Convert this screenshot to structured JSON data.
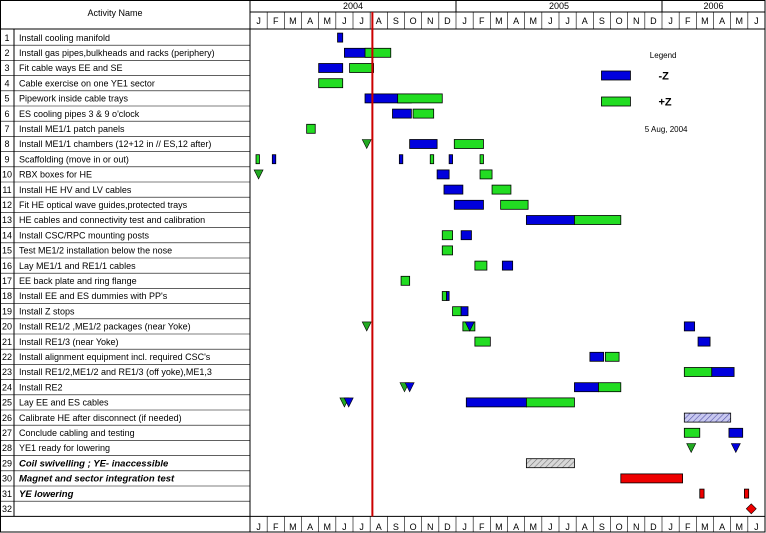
{
  "chart_data": {
    "type": "gantt",
    "header": {
      "activity_column": "Activity Name"
    },
    "years": [
      "2004",
      "2005",
      "2006"
    ],
    "months": [
      "J",
      "F",
      "M",
      "A",
      "M",
      "J",
      "J",
      "A",
      "S",
      "O",
      "N",
      "D",
      "J",
      "F",
      "M",
      "A",
      "M",
      "J",
      "J",
      "A",
      "S",
      "O",
      "N",
      "D",
      "J",
      "F",
      "M",
      "A",
      "M",
      "J"
    ],
    "time_axis": {
      "start": "2004-01",
      "end": "2006-06",
      "unit": "month"
    },
    "today_line": "2004-08-05",
    "legend": {
      "title": "Legend",
      "items": [
        {
          "label": "-Z",
          "color": "#0000dd"
        },
        {
          "label": "+Z",
          "color": "#22dd22"
        }
      ],
      "date": "5 Aug, 2004"
    },
    "colors": {
      "minus_z": "#0000dd",
      "plus_z": "#22dd22",
      "milestone": "#22aa22",
      "red": "#ee0000",
      "hatched": "#9999cc",
      "grey": "#bbbbbb",
      "today": "#cc0000"
    },
    "activities": [
      {
        "id": "1",
        "name": "Install cooling manifold",
        "bold": false,
        "bars": [
          {
            "s": 5.1,
            "e": 5.4,
            "c": "blue"
          }
        ]
      },
      {
        "id": "2",
        "name": "Install gas pipes,bulkheads and racks (periphery)",
        "bold": false,
        "bars": [
          {
            "s": 5.5,
            "e": 7.2,
            "c": "blue"
          },
          {
            "s": 6.7,
            "e": 8.2,
            "c": "green"
          }
        ]
      },
      {
        "id": "3",
        "name": "Fit cable ways  EE and SE",
        "bold": false,
        "bars": [
          {
            "s": 4.0,
            "e": 5.4,
            "c": "blue"
          },
          {
            "s": 5.8,
            "e": 7.2,
            "c": "green"
          }
        ]
      },
      {
        "id": "4",
        "name": "Cable exercise on one YE1 sector",
        "bold": false,
        "bars": [
          {
            "s": 4.0,
            "e": 5.4,
            "c": "green"
          }
        ]
      },
      {
        "id": "5",
        "name": "Pipework inside cable trays",
        "bold": false,
        "bars": [
          {
            "s": 6.7,
            "e": 9.4,
            "c": "blue"
          },
          {
            "s": 8.6,
            "e": 11.2,
            "c": "green"
          }
        ]
      },
      {
        "id": "6",
        "name": "ES cooling pipes 3  & 9 o'clock",
        "bold": false,
        "bars": [
          {
            "s": 8.3,
            "e": 9.4,
            "c": "blue"
          },
          {
            "s": 9.5,
            "e": 10.7,
            "c": "green"
          }
        ]
      },
      {
        "id": "7",
        "name": "Install ME1/1 patch panels",
        "bold": false,
        "bars": [
          {
            "s": 3.3,
            "e": 3.8,
            "c": "green"
          }
        ]
      },
      {
        "id": "8",
        "name": "Install ME1/1 chambers (12+12 in // ES,12 after)",
        "bold": false,
        "bars": [
          {
            "s": 9.3,
            "e": 10.9,
            "c": "blue"
          },
          {
            "s": 11.9,
            "e": 13.6,
            "c": "green"
          }
        ],
        "milestones": [
          {
            "t": 6.8,
            "c": "green"
          }
        ]
      },
      {
        "id": "9",
        "name": "Scaffolding (move in or out)",
        "bold": false,
        "bars": [
          {
            "s": 0.35,
            "e": 0.55,
            "c": "green"
          },
          {
            "s": 1.3,
            "e": 1.5,
            "c": "blue"
          },
          {
            "s": 8.7,
            "e": 8.9,
            "c": "blue"
          },
          {
            "s": 10.5,
            "e": 10.7,
            "c": "green"
          },
          {
            "s": 11.6,
            "e": 11.8,
            "c": "blue"
          },
          {
            "s": 13.4,
            "e": 13.6,
            "c": "green"
          }
        ]
      },
      {
        "id": "10",
        "name": "RBX boxes for HE",
        "bold": false,
        "bars": [
          {
            "s": 10.9,
            "e": 11.6,
            "c": "blue"
          },
          {
            "s": 13.4,
            "e": 14.1,
            "c": "green"
          }
        ],
        "milestones": [
          {
            "t": 0.5,
            "c": "green"
          }
        ]
      },
      {
        "id": "11",
        "name": "Install HE HV and LV cables",
        "bold": false,
        "bars": [
          {
            "s": 11.3,
            "e": 12.4,
            "c": "blue"
          },
          {
            "s": 14.1,
            "e": 15.2,
            "c": "green"
          }
        ]
      },
      {
        "id": "12",
        "name": "Fit HE optical wave guides,protected trays",
        "bold": false,
        "bars": [
          {
            "s": 11.9,
            "e": 13.6,
            "c": "blue"
          },
          {
            "s": 14.6,
            "e": 16.2,
            "c": "green"
          }
        ]
      },
      {
        "id": "13",
        "name": "HE cables and connectivity test and calibration",
        "bold": false,
        "bars": [
          {
            "s": 16.1,
            "e": 18.9,
            "c": "blue"
          },
          {
            "s": 18.9,
            "e": 21.6,
            "c": "green"
          }
        ]
      },
      {
        "id": "14",
        "name": "Install  CSC/RPC mounting posts",
        "bold": false,
        "bars": [
          {
            "s": 11.2,
            "e": 11.8,
            "c": "green"
          },
          {
            "s": 12.3,
            "e": 12.9,
            "c": "blue"
          }
        ]
      },
      {
        "id": "15",
        "name": "Test ME1/2 installation below the nose",
        "bold": false,
        "bars": [
          {
            "s": 11.2,
            "e": 11.8,
            "c": "green"
          }
        ]
      },
      {
        "id": "16",
        "name": "Lay ME1/1 and RE1/1 cables",
        "bold": false,
        "bars": [
          {
            "s": 13.1,
            "e": 13.8,
            "c": "green"
          },
          {
            "s": 14.7,
            "e": 15.3,
            "c": "blue"
          }
        ]
      },
      {
        "id": "17",
        "name": "EE back plate and ring flange",
        "bold": false,
        "bars": [
          {
            "s": 8.8,
            "e": 9.3,
            "c": "green"
          }
        ]
      },
      {
        "id": "18",
        "name": "Install EE and ES dummies with PP's",
        "bold": false,
        "bars": [
          {
            "s": 11.2,
            "e": 11.45,
            "c": "green"
          },
          {
            "s": 11.45,
            "e": 11.6,
            "c": "blue"
          }
        ]
      },
      {
        "id": "19",
        "name": "Install  Z stops",
        "bold": false,
        "bars": [
          {
            "s": 11.8,
            "e": 12.3,
            "c": "green"
          },
          {
            "s": 12.3,
            "e": 12.7,
            "c": "blue"
          }
        ]
      },
      {
        "id": "20",
        "name": "Install RE1/2 ,ME1/2 packages (near Yoke)",
        "bold": false,
        "bars": [
          {
            "s": 12.4,
            "e": 13.1,
            "c": "green"
          },
          {
            "s": 25.3,
            "e": 25.9,
            "c": "blue"
          }
        ],
        "milestones": [
          {
            "t": 6.8,
            "c": "green"
          },
          {
            "t": 12.8,
            "c": "blue"
          }
        ]
      },
      {
        "id": "21",
        "name": "Install RE1/3 (near Yoke)",
        "bold": false,
        "bars": [
          {
            "s": 13.1,
            "e": 14.0,
            "c": "green"
          },
          {
            "s": 26.1,
            "e": 26.8,
            "c": "blue"
          }
        ]
      },
      {
        "id": "22",
        "name": "Install alignment equipment incl. required CSC's",
        "bold": false,
        "bars": [
          {
            "s": 19.8,
            "e": 20.6,
            "c": "blue"
          },
          {
            "s": 20.7,
            "e": 21.5,
            "c": "green"
          }
        ]
      },
      {
        "id": "23",
        "name": "Install RE1/2,ME1/2 and RE1/3 (off yoke),ME1,3",
        "bold": false,
        "bars": [
          {
            "s": 25.3,
            "e": 26.9,
            "c": "green"
          },
          {
            "s": 26.9,
            "e": 28.2,
            "c": "blue"
          }
        ]
      },
      {
        "id": "24",
        "name": "Install RE2",
        "bold": false,
        "bars": [
          {
            "s": 18.9,
            "e": 20.3,
            "c": "blue"
          },
          {
            "s": 20.3,
            "e": 21.6,
            "c": "green"
          }
        ],
        "milestones": [
          {
            "t": 9.0,
            "c": "green"
          },
          {
            "t": 9.3,
            "c": "blue"
          }
        ]
      },
      {
        "id": "25",
        "name": "Lay EE and ES cables",
        "bold": false,
        "bars": [
          {
            "s": 12.6,
            "e": 16.1,
            "c": "blue"
          },
          {
            "s": 16.1,
            "e": 18.9,
            "c": "green"
          }
        ],
        "milestones": [
          {
            "t": 5.5,
            "c": "green"
          },
          {
            "t": 5.75,
            "c": "blue"
          }
        ]
      },
      {
        "id": "26",
        "name": "Calibrate HE after disconnect (if needed)",
        "bold": false,
        "bars": [
          {
            "s": 25.3,
            "e": 28.0,
            "c": "hatched"
          }
        ]
      },
      {
        "id": "27",
        "name": "Conclude cabling and testing",
        "bold": false,
        "bars": [
          {
            "s": 25.3,
            "e": 26.2,
            "c": "green"
          },
          {
            "s": 27.9,
            "e": 28.7,
            "c": "blue"
          }
        ]
      },
      {
        "id": "28",
        "name": "YE1 ready for lowering",
        "bold": false,
        "milestones": [
          {
            "t": 25.7,
            "c": "green"
          },
          {
            "t": 28.3,
            "c": "blue"
          }
        ]
      },
      {
        "id": "29",
        "name": "Coil swivelling ; YE- inaccessible",
        "bold": true,
        "bars": [
          {
            "s": 16.1,
            "e": 18.9,
            "c": "grey"
          }
        ]
      },
      {
        "id": "30",
        "name": "Magnet and sector integration test",
        "bold": true,
        "bars": [
          {
            "s": 21.6,
            "e": 25.2,
            "c": "red"
          }
        ]
      },
      {
        "id": "31",
        "name": "YE lowering",
        "bold": true,
        "bars": [
          {
            "s": 26.2,
            "e": 26.45,
            "c": "red"
          },
          {
            "s": 28.8,
            "e": 29.05,
            "c": "red"
          }
        ]
      },
      {
        "id": "32",
        "name": "",
        "bold": false,
        "diamonds": [
          {
            "t": 29.2,
            "c": "red"
          }
        ]
      }
    ]
  }
}
